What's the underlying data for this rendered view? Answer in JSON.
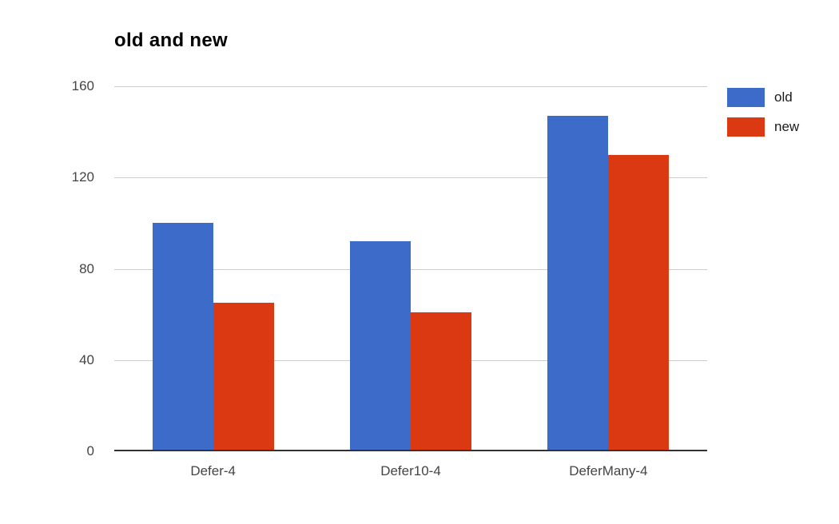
{
  "chart_data": {
    "type": "bar",
    "title": "old and new",
    "categories": [
      "Defer-4",
      "Defer10-4",
      "DeferMany-4"
    ],
    "series": [
      {
        "name": "old",
        "color": "#3C6BC9",
        "values": [
          100,
          92,
          147
        ]
      },
      {
        "name": "new",
        "color": "#DB3912",
        "values": [
          65,
          61,
          130
        ]
      }
    ],
    "ylim": [
      0,
      160
    ],
    "yticks": [
      0,
      40,
      80,
      120,
      160
    ],
    "grid": true,
    "legend_position": "right",
    "xlabel": "",
    "ylabel": ""
  },
  "style": {
    "background": "#ffffff",
    "title_color": "#000000",
    "axis_line_color": "#333333",
    "gridline_color": "#cccccc",
    "tick_label_color": "#444444",
    "legend_label_color": "#1a1a1a"
  }
}
